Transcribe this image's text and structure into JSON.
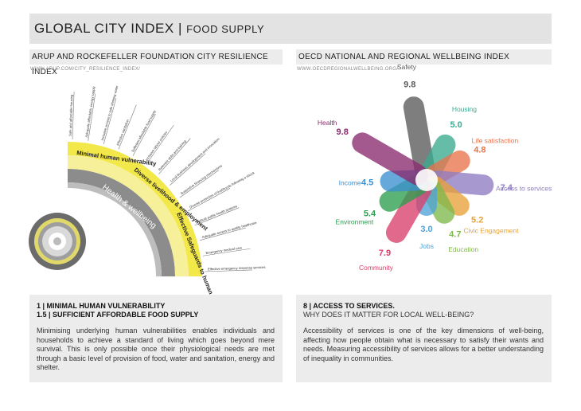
{
  "header": {
    "title": "GLOBAL CITY INDEX",
    "separator": "|",
    "subtitle": "FOOD SUPPLY"
  },
  "left": {
    "heading": "ARUP AND ROCKEFELLER FOUNDATION CITY RESILIENCE INDEX",
    "url": "WWW.ARUP.COM/CITY_RESILIENCE_INDEX/",
    "ring_labels": {
      "outer": "Health & wellbeing"
    },
    "segments": [
      {
        "label": "Minimal human vulnerability",
        "color": "#f2e84a"
      },
      {
        "label": "Diverse livelihood & employment",
        "color": "#f2e84a"
      },
      {
        "label": "Effective Safeguards to human health & life",
        "color": "#f2e84a"
      }
    ],
    "spokes": [
      "Safe and affordable housing",
      "Adequate affordable energy supply",
      "Inclusive access to safe drinking water",
      "Effective sanitation",
      "Sufficient affordable food supply",
      "Inclusive labour policies",
      "Relevant skills and training",
      "Local business development and innovation",
      "Supportive financing mechanisms",
      "Diverse protection of livelihoods following a shock",
      "Robust public health systems",
      "Adequate access to quality healthcare",
      "Emergency medical care",
      "Effective emergency response services"
    ],
    "panel": {
      "heading1": "1 | MINIMAL HUMAN VULNERABILITY",
      "heading2": "1.5 | SUFFICIENT AFFORDABLE FOOD SUPPLY",
      "body": "Minimising underlying human vulnerabilities enables individuals and households to achieve a standard of living which goes beyond mere survival. This is only possible once their physiological needs are met through a basic level of provision of food, water and sanitation, energy and shelter."
    }
  },
  "right": {
    "heading": "OECD NATIONAL AND REGIONAL WELLBEING INDEX",
    "url": "WWW.OECDREGIONALWELLBEING.ORG/",
    "petals": [
      {
        "name": "Safety",
        "value": "9.8",
        "color": "#5a5a5a"
      },
      {
        "name": "Housing",
        "value": "5.0",
        "color": "#3aaa8f"
      },
      {
        "name": "Life satisfaction",
        "value": "4.8",
        "color": "#e8734a"
      },
      {
        "name": "Access to services",
        "value": "7.4",
        "color": "#8e7cc3"
      },
      {
        "name": "Civic Engagement",
        "value": "5.2",
        "color": "#e8a23a"
      },
      {
        "name": "Education",
        "value": "4.7",
        "color": "#7fb94a"
      },
      {
        "name": "Jobs",
        "value": "3.0",
        "color": "#4fa3d9"
      },
      {
        "name": "Community",
        "value": "7.9",
        "color": "#d93f6a"
      },
      {
        "name": "Environment",
        "value": "5.4",
        "color": "#2e9e4f"
      },
      {
        "name": "Income",
        "value": "4.5",
        "color": "#3b8fd0"
      },
      {
        "name": "Health",
        "value": "9.8",
        "color": "#8b2a6e"
      }
    ],
    "panel": {
      "heading1": "8 |  ACCESS TO SERVICES.",
      "heading2": "WHY DOES IT MATTER FOR LOCAL WELL-BEING?",
      "body": "Accessibility of services is one of the key dimensions of well-being, affecting how people obtain what is necessary to satisfy their wants and needs. Measuring accessibility of services allows for a better understanding of inequality in communities."
    }
  }
}
